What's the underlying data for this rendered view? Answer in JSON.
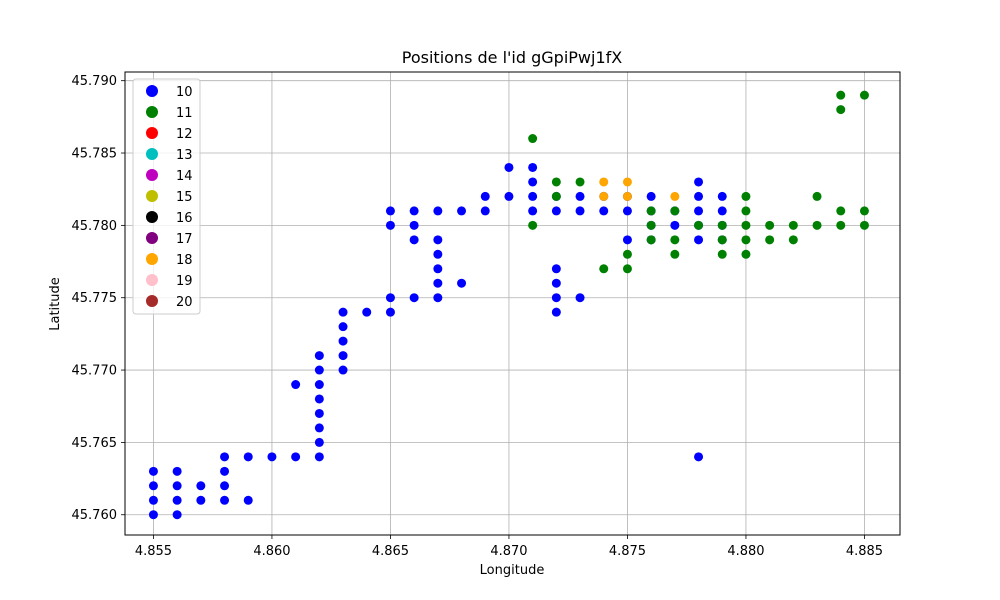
{
  "chart_data": {
    "type": "scatter",
    "title": "Positions de l'id gGpiPwj1fX",
    "xlabel": "Longitude",
    "ylabel": "Latitude",
    "xlim": [
      4.8538,
      4.8865
    ],
    "ylim": [
      45.7586,
      45.7906
    ],
    "x_ticks": [
      "4.855",
      "4.860",
      "4.865",
      "4.870",
      "4.875",
      "4.880",
      "4.885"
    ],
    "y_ticks": [
      "45.760",
      "45.765",
      "45.770",
      "45.775",
      "45.780",
      "45.785",
      "45.790"
    ],
    "grid": true,
    "legend_placement": "upper-left",
    "series": [
      {
        "name": "10",
        "color": "#0000ff",
        "points": [
          [
            4.855,
            45.76
          ],
          [
            4.855,
            45.761
          ],
          [
            4.855,
            45.762
          ],
          [
            4.855,
            45.763
          ],
          [
            4.856,
            45.76
          ],
          [
            4.856,
            45.761
          ],
          [
            4.856,
            45.762
          ],
          [
            4.856,
            45.763
          ],
          [
            4.857,
            45.761
          ],
          [
            4.857,
            45.762
          ],
          [
            4.858,
            45.761
          ],
          [
            4.858,
            45.762
          ],
          [
            4.858,
            45.763
          ],
          [
            4.858,
            45.764
          ],
          [
            4.859,
            45.761
          ],
          [
            4.859,
            45.764
          ],
          [
            4.86,
            45.764
          ],
          [
            4.861,
            45.764
          ],
          [
            4.861,
            45.769
          ],
          [
            4.862,
            45.764
          ],
          [
            4.862,
            45.765
          ],
          [
            4.862,
            45.766
          ],
          [
            4.862,
            45.767
          ],
          [
            4.862,
            45.768
          ],
          [
            4.862,
            45.769
          ],
          [
            4.862,
            45.77
          ],
          [
            4.862,
            45.771
          ],
          [
            4.863,
            45.77
          ],
          [
            4.863,
            45.771
          ],
          [
            4.863,
            45.772
          ],
          [
            4.863,
            45.773
          ],
          [
            4.863,
            45.774
          ],
          [
            4.864,
            45.774
          ],
          [
            4.865,
            45.774
          ],
          [
            4.865,
            45.775
          ],
          [
            4.865,
            45.78
          ],
          [
            4.865,
            45.781
          ],
          [
            4.866,
            45.775
          ],
          [
            4.866,
            45.779
          ],
          [
            4.866,
            45.78
          ],
          [
            4.866,
            45.781
          ],
          [
            4.867,
            45.775
          ],
          [
            4.867,
            45.776
          ],
          [
            4.867,
            45.777
          ],
          [
            4.867,
            45.778
          ],
          [
            4.867,
            45.779
          ],
          [
            4.867,
            45.781
          ],
          [
            4.868,
            45.776
          ],
          [
            4.868,
            45.781
          ],
          [
            4.869,
            45.781
          ],
          [
            4.869,
            45.782
          ],
          [
            4.87,
            45.782
          ],
          [
            4.87,
            45.784
          ],
          [
            4.871,
            45.781
          ],
          [
            4.871,
            45.782
          ],
          [
            4.871,
            45.783
          ],
          [
            4.871,
            45.784
          ],
          [
            4.872,
            45.774
          ],
          [
            4.872,
            45.775
          ],
          [
            4.872,
            45.776
          ],
          [
            4.872,
            45.777
          ],
          [
            4.872,
            45.781
          ],
          [
            4.872,
            45.782
          ],
          [
            4.873,
            45.775
          ],
          [
            4.873,
            45.781
          ],
          [
            4.873,
            45.782
          ],
          [
            4.874,
            45.781
          ],
          [
            4.874,
            45.782
          ],
          [
            4.875,
            45.779
          ],
          [
            4.875,
            45.781
          ],
          [
            4.875,
            45.782
          ],
          [
            4.876,
            45.779
          ],
          [
            4.876,
            45.78
          ],
          [
            4.876,
            45.781
          ],
          [
            4.876,
            45.782
          ],
          [
            4.877,
            45.78
          ],
          [
            4.877,
            45.781
          ],
          [
            4.878,
            45.764
          ],
          [
            4.878,
            45.779
          ],
          [
            4.878,
            45.78
          ],
          [
            4.878,
            45.781
          ],
          [
            4.878,
            45.782
          ],
          [
            4.878,
            45.783
          ],
          [
            4.879,
            45.779
          ],
          [
            4.879,
            45.78
          ],
          [
            4.879,
            45.781
          ],
          [
            4.879,
            45.782
          ]
        ]
      },
      {
        "name": "11",
        "color": "#008000",
        "points": [
          [
            4.871,
            45.78
          ],
          [
            4.871,
            45.786
          ],
          [
            4.872,
            45.782
          ],
          [
            4.872,
            45.783
          ],
          [
            4.873,
            45.783
          ],
          [
            4.874,
            45.777
          ],
          [
            4.875,
            45.777
          ],
          [
            4.875,
            45.778
          ],
          [
            4.876,
            45.779
          ],
          [
            4.876,
            45.78
          ],
          [
            4.876,
            45.781
          ],
          [
            4.877,
            45.778
          ],
          [
            4.877,
            45.779
          ],
          [
            4.877,
            45.781
          ],
          [
            4.878,
            45.78
          ],
          [
            4.879,
            45.778
          ],
          [
            4.879,
            45.779
          ],
          [
            4.879,
            45.78
          ],
          [
            4.88,
            45.778
          ],
          [
            4.88,
            45.779
          ],
          [
            4.88,
            45.78
          ],
          [
            4.88,
            45.781
          ],
          [
            4.88,
            45.782
          ],
          [
            4.881,
            45.779
          ],
          [
            4.881,
            45.78
          ],
          [
            4.882,
            45.779
          ],
          [
            4.882,
            45.78
          ],
          [
            4.883,
            45.78
          ],
          [
            4.883,
            45.782
          ],
          [
            4.884,
            45.78
          ],
          [
            4.884,
            45.781
          ],
          [
            4.884,
            45.788
          ],
          [
            4.884,
            45.789
          ],
          [
            4.885,
            45.78
          ],
          [
            4.885,
            45.781
          ],
          [
            4.885,
            45.789
          ]
        ]
      },
      {
        "name": "12",
        "color": "#ff0000",
        "points": []
      },
      {
        "name": "13",
        "color": "#00bfbf",
        "points": []
      },
      {
        "name": "14",
        "color": "#bf00bf",
        "points": []
      },
      {
        "name": "15",
        "color": "#bfbf00",
        "points": []
      },
      {
        "name": "16",
        "color": "#000000",
        "points": []
      },
      {
        "name": "17",
        "color": "#800080",
        "points": []
      },
      {
        "name": "18",
        "color": "#ffa500",
        "points": [
          [
            4.874,
            45.782
          ],
          [
            4.874,
            45.783
          ],
          [
            4.875,
            45.782
          ],
          [
            4.875,
            45.783
          ],
          [
            4.877,
            45.782
          ]
        ]
      },
      {
        "name": "19",
        "color": "#ffc0cb",
        "points": []
      },
      {
        "name": "20",
        "color": "#a52a2a",
        "points": []
      }
    ]
  }
}
